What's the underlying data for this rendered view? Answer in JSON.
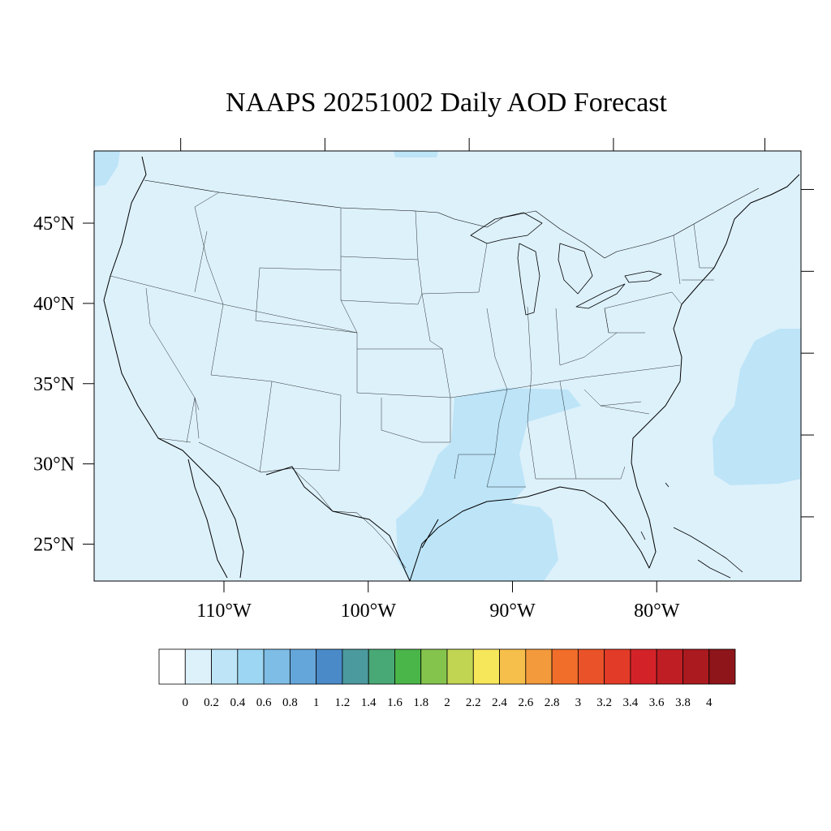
{
  "title": "NAAPS 20251002 Daily AOD Forecast",
  "map": {
    "region": "Contiguous United States",
    "projection": "equirectangular",
    "lon_range": [
      -119,
      -70
    ],
    "lat_range": [
      22.7,
      49.5
    ],
    "background_color": "#ddf1fb",
    "boundary_color": "#000000"
  },
  "axes": {
    "x_ticks": [
      {
        "value": -110,
        "label": "110°W"
      },
      {
        "value": -100,
        "label": "100°W"
      },
      {
        "value": -90,
        "label": "90°W"
      },
      {
        "value": -80,
        "label": "80°W"
      }
    ],
    "y_ticks": [
      {
        "value": 45,
        "label": "45°N"
      },
      {
        "value": 40,
        "label": "40°N"
      },
      {
        "value": 35,
        "label": "35°N"
      },
      {
        "value": 30,
        "label": "30°N"
      },
      {
        "value": 25,
        "label": "25°N"
      }
    ]
  },
  "aod_regions": [
    {
      "name": "Gulf Coast / Lower Mississippi Valley",
      "range": "0.2-0.4",
      "color": "#bde4f7"
    },
    {
      "name": "Western Atlantic offshore",
      "range": "0.2-0.4",
      "color": "#bde4f7"
    },
    {
      "name": "Pacific Northwest offshore",
      "range": "0.2-0.4",
      "color": "#bde4f7"
    }
  ],
  "colorbar": {
    "labels": [
      "0",
      "0.2",
      "0.4",
      "0.6",
      "0.8",
      "1",
      "1.2",
      "1.4",
      "1.6",
      "1.8",
      "2",
      "2.2",
      "2.4",
      "2.6",
      "2.8",
      "3",
      "3.2",
      "3.4",
      "3.6",
      "3.8",
      "4"
    ],
    "colors": [
      "#ffffff",
      "#ddf1fb",
      "#bde4f7",
      "#9dd6f3",
      "#7ebde6",
      "#64a6da",
      "#4a8ac8",
      "#4a9a9e",
      "#48a876",
      "#4ab548",
      "#84c44c",
      "#c2d553",
      "#f6e65a",
      "#f6bf4b",
      "#f39a3c",
      "#f16d2a",
      "#ea5229",
      "#e23b27",
      "#d42328",
      "#bf1e24",
      "#aa1a1f",
      "#8e1519"
    ]
  }
}
